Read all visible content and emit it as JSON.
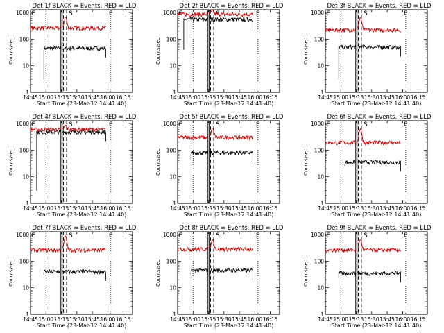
{
  "chart_data": [
    {
      "type": "line",
      "title": "Det 1f BLACK = Events, RED = LLD",
      "xlabel": "Start Time (23-Mar-12 14:41:40)",
      "ylabel": "Counts/sec",
      "x_ticks": [
        "14:45",
        "15:00",
        "15:15",
        "15:30",
        "15:45",
        "16:00",
        "16:15"
      ],
      "y_ticks": [
        "1",
        "10",
        "100",
        "1000"
      ],
      "ylim": [
        1,
        1000
      ],
      "y_scale": "log",
      "panel_markers": [
        "E",
        "S",
        "E"
      ],
      "series": [
        {
          "name": "Events",
          "color": "#000000",
          "level": 45,
          "start": "14:58",
          "end": "15:58",
          "drop_to": 3
        },
        {
          "name": "LLD",
          "color": "#cc0000",
          "level": 260,
          "start": "14:45",
          "end": "15:58",
          "peak": 650
        }
      ]
    },
    {
      "type": "line",
      "title": "Det 2f BLACK = Events, RED = LLD",
      "xlabel": "Start Time (23-Mar-12 14:41:40)",
      "ylabel": "Counts/sec",
      "x_ticks": [
        "14:45",
        "15:00",
        "15:15",
        "15:30",
        "15:45",
        "16:00",
        "16:15"
      ],
      "y_ticks": [
        "1",
        "10",
        "100",
        "1000"
      ],
      "ylim": [
        1,
        1000
      ],
      "y_scale": "log",
      "panel_markers": [
        "E",
        "S",
        "E"
      ],
      "series": [
        {
          "name": "Events",
          "color": "#000000",
          "level": 550,
          "start": "14:51",
          "end": "15:58",
          "drop_to": 40
        },
        {
          "name": "LLD",
          "color": "#cc0000",
          "level": 850,
          "start": "14:45",
          "end": "15:58",
          "peak": 1150
        }
      ]
    },
    {
      "type": "line",
      "title": "Det 3f BLACK = Events, RED = LLD",
      "xlabel": "Start Time (23-Mar-12 14:41:40)",
      "ylabel": "Counts/sec",
      "x_ticks": [
        "14:45",
        "15:00",
        "15:15",
        "15:30",
        "15:45",
        "16:00",
        "16:15"
      ],
      "y_ticks": [
        "1",
        "10",
        "100",
        "1000"
      ],
      "ylim": [
        1,
        1000
      ],
      "y_scale": "log",
      "panel_markers": [
        "E",
        "S",
        "E"
      ],
      "series": [
        {
          "name": "Events",
          "color": "#000000",
          "level": 50,
          "start": "14:58",
          "end": "15:58",
          "drop_to": 3
        },
        {
          "name": "LLD",
          "color": "#cc0000",
          "level": 220,
          "start": "14:45",
          "end": "15:58",
          "peak": 650
        }
      ]
    },
    {
      "type": "line",
      "title": "Det 4f BLACK = Events, RED = LLD",
      "xlabel": "Start Time (23-Mar-12 14:41:40)",
      "ylabel": "Counts/sec",
      "x_ticks": [
        "14:45",
        "15:00",
        "15:15",
        "15:30",
        "15:45",
        "16:00",
        "16:15"
      ],
      "y_ticks": [
        "1",
        "10",
        "100",
        "1000"
      ],
      "ylim": [
        1,
        1000
      ],
      "y_scale": "log",
      "panel_markers": [
        "E",
        "S",
        "E"
      ],
      "series": [
        {
          "name": "Events",
          "color": "#000000",
          "level": 480,
          "start": "14:51",
          "end": "15:58",
          "drop_to": 3
        },
        {
          "name": "LLD",
          "color": "#cc0000",
          "level": 600,
          "start": "14:45",
          "end": "15:58",
          "peak": 850
        }
      ]
    },
    {
      "type": "line",
      "title": "Det 5f BLACK = Events, RED = LLD",
      "xlabel": "Start Time (23-Mar-12 14:41:40)",
      "ylabel": "Counts/sec",
      "x_ticks": [
        "14:45",
        "15:00",
        "15:15",
        "15:30",
        "15:45",
        "16:00",
        "16:15"
      ],
      "y_ticks": [
        "1",
        "10",
        "100",
        "1000"
      ],
      "ylim": [
        1,
        1000
      ],
      "y_scale": "log",
      "panel_markers": [
        "E",
        "S",
        "E"
      ],
      "series": [
        {
          "name": "Events",
          "color": "#000000",
          "level": 80,
          "start": "14:58",
          "end": "15:58",
          "drop_to": 40
        },
        {
          "name": "LLD",
          "color": "#cc0000",
          "level": 300,
          "start": "14:45",
          "end": "15:58",
          "peak": 650
        }
      ]
    },
    {
      "type": "line",
      "title": "Det 6f BLACK = Events, RED = LLD",
      "xlabel": "Start Time (23-Mar-12 14:41:40)",
      "ylabel": "Counts/sec",
      "x_ticks": [
        "14:45",
        "15:00",
        "15:15",
        "15:30",
        "15:45",
        "16:00",
        "16:15"
      ],
      "y_ticks": [
        "1",
        "10",
        "100",
        "1000"
      ],
      "ylim": [
        1,
        1000
      ],
      "y_scale": "log",
      "panel_markers": [
        "E",
        "S",
        "E"
      ],
      "series": [
        {
          "name": "Events",
          "color": "#000000",
          "level": 35,
          "start": "15:04",
          "end": "15:58",
          "drop_to": 25
        },
        {
          "name": "LLD",
          "color": "#cc0000",
          "level": 190,
          "start": "14:45",
          "end": "15:58",
          "peak": 650
        }
      ]
    },
    {
      "type": "line",
      "title": "Det 7f BLACK = Events, RED = LLD",
      "xlabel": "Start Time (23-Mar-12 14:41:40)",
      "ylabel": "Counts/sec",
      "x_ticks": [
        "14:45",
        "15:00",
        "15:15",
        "15:30",
        "15:45",
        "16:00",
        "16:15"
      ],
      "y_ticks": [
        "1",
        "10",
        "100",
        "1000"
      ],
      "ylim": [
        1,
        1000
      ],
      "y_scale": "log",
      "panel_markers": [
        "E",
        "S",
        "E"
      ],
      "series": [
        {
          "name": "Events",
          "color": "#000000",
          "level": 40,
          "start": "14:58",
          "end": "15:58",
          "drop_to": 30
        },
        {
          "name": "LLD",
          "color": "#cc0000",
          "level": 260,
          "start": "14:45",
          "end": "15:58",
          "peak": 850
        }
      ]
    },
    {
      "type": "line",
      "title": "Det 8f BLACK = Events, RED = LLD",
      "xlabel": "Start Time (23-Mar-12 14:41:40)",
      "ylabel": "Counts/sec",
      "x_ticks": [
        "14:45",
        "15:00",
        "15:15",
        "15:30",
        "15:45",
        "16:00",
        "16:15"
      ],
      "y_ticks": [
        "1",
        "10",
        "100",
        "1000"
      ],
      "ylim": [
        1,
        1000
      ],
      "y_scale": "log",
      "panel_markers": [
        "E",
        "S",
        "E"
      ],
      "series": [
        {
          "name": "Events",
          "color": "#000000",
          "level": 45,
          "start": "14:58",
          "end": "15:58",
          "drop_to": 30
        },
        {
          "name": "LLD",
          "color": "#cc0000",
          "level": 280,
          "start": "14:45",
          "end": "15:58",
          "peak": 650
        }
      ]
    },
    {
      "type": "line",
      "title": "Det 9f BLACK = Events, RED = LLD",
      "xlabel": "Start Time (23-Mar-12 14:41:40)",
      "ylabel": "Counts/sec",
      "x_ticks": [
        "14:45",
        "15:00",
        "15:15",
        "15:30",
        "15:45",
        "16:00",
        "16:15"
      ],
      "y_ticks": [
        "1",
        "10",
        "100",
        "1000"
      ],
      "ylim": [
        1,
        1000
      ],
      "y_scale": "log",
      "panel_markers": [
        "E",
        "S",
        "E"
      ],
      "series": [
        {
          "name": "Events",
          "color": "#000000",
          "level": 35,
          "start": "14:58",
          "end": "15:58",
          "drop_to": 25
        },
        {
          "name": "LLD",
          "color": "#cc0000",
          "level": 260,
          "start": "14:45",
          "end": "15:58",
          "peak": 650
        }
      ]
    }
  ]
}
